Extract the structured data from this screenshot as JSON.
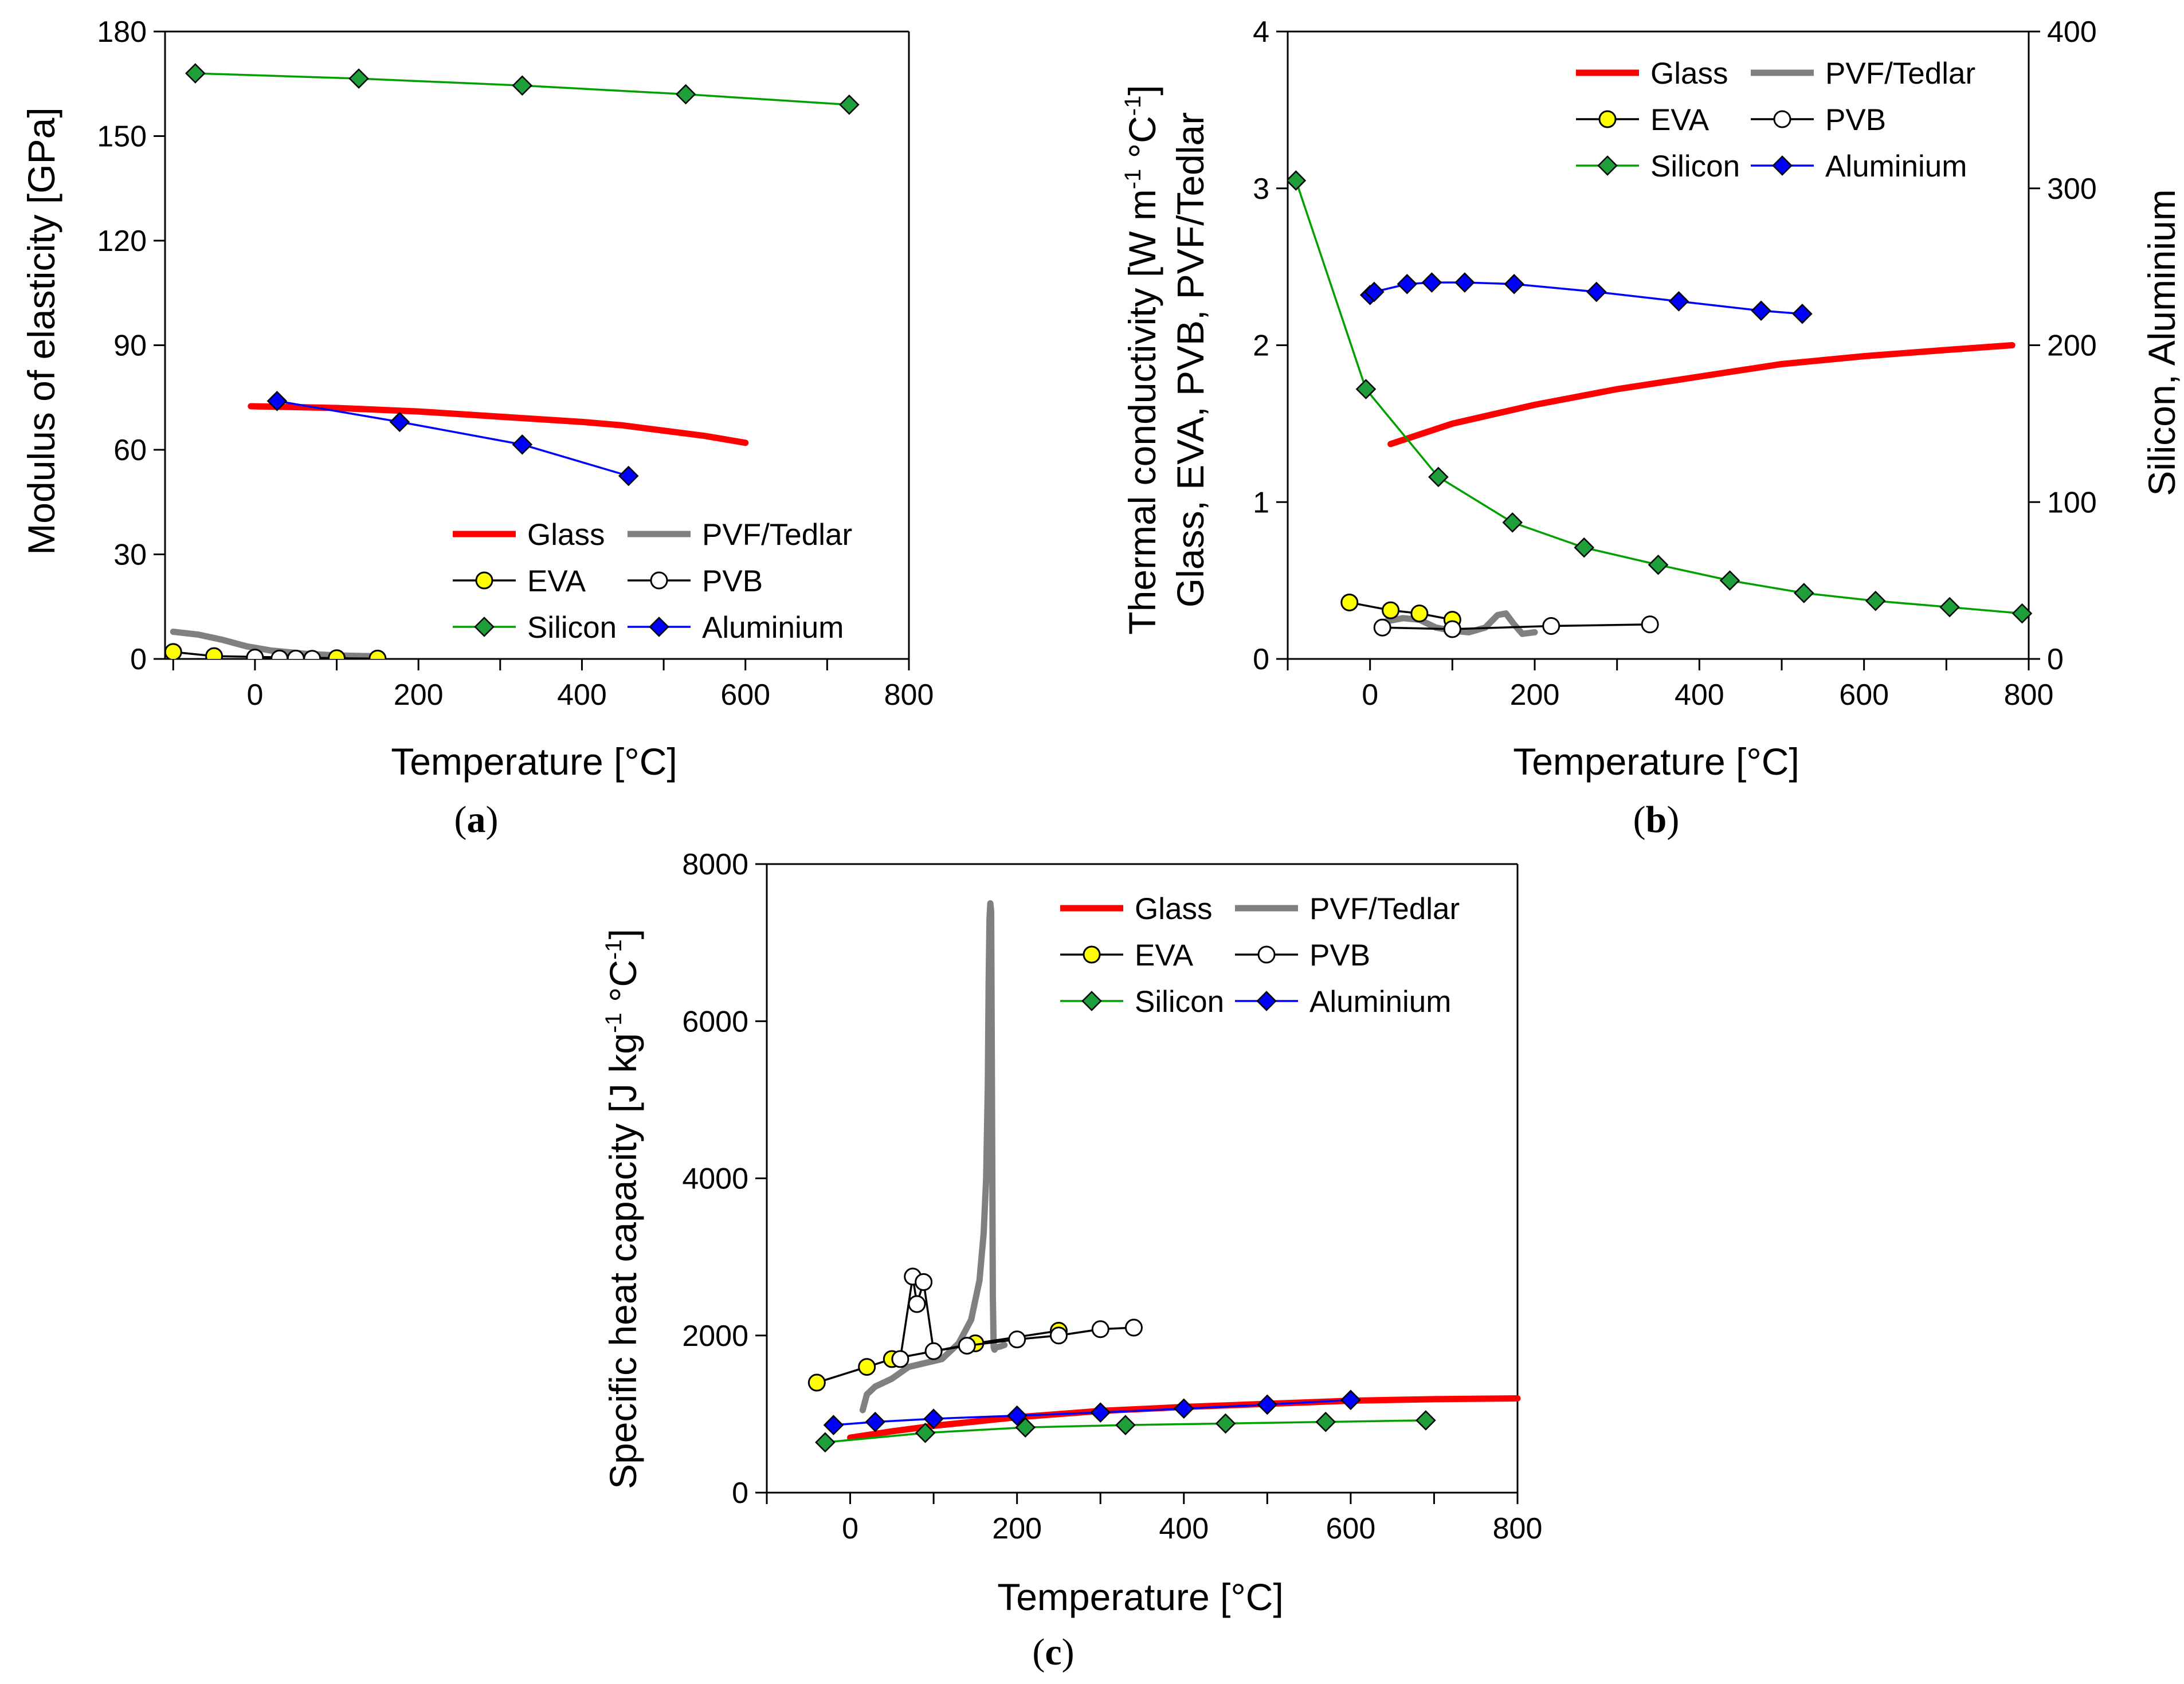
{
  "chart_data": [
    {
      "id": "a",
      "type": "line",
      "caption_open": "(",
      "caption_letter": "a",
      "caption_close": ")",
      "title": "",
      "xlabel": "Temperature  [°C]",
      "ylabel": "Modulus of elasticity  [GPa]",
      "xlim": [
        -110,
        800
      ],
      "ylim": [
        0,
        180
      ],
      "xticks": [
        0,
        200,
        400,
        600,
        800
      ],
      "yticks": [
        0,
        30,
        60,
        90,
        120,
        150,
        180
      ],
      "legend_position": "bottom-right",
      "series": [
        {
          "name": "Glass",
          "style": "thick",
          "color": "#ff0000",
          "x": [
            -5,
            100,
            200,
            300,
            400,
            450,
            500,
            550,
            600
          ],
          "y": [
            72.5,
            72,
            71,
            69.5,
            68,
            67,
            65.5,
            64,
            62
          ]
        },
        {
          "name": "PVF/Tedlar",
          "style": "thick",
          "color": "#808080",
          "x": [
            -100,
            -70,
            -40,
            -10,
            20,
            60,
            100,
            140
          ],
          "y": [
            7.8,
            7,
            5.5,
            3.6,
            2.4,
            1.5,
            1,
            0.8
          ]
        },
        {
          "name": "EVA",
          "style": "marker-circle",
          "color": "#000000",
          "fill": "#ffff00",
          "x": [
            -100,
            -50,
            100,
            150
          ],
          "y": [
            2,
            0.8,
            0.2,
            0.1
          ]
        },
        {
          "name": "PVB",
          "style": "marker-circle",
          "color": "#000000",
          "fill": "#ffffff",
          "x": [
            0,
            30,
            50,
            70
          ],
          "y": [
            0.4,
            0.1,
            0.1,
            0.05
          ]
        },
        {
          "name": "Silicon",
          "style": "marker-diamond",
          "color": "#00a000",
          "fill": "#1f9e3c",
          "x": [
            -73,
            127,
            327,
            527,
            727
          ],
          "y": [
            168,
            166.5,
            164.5,
            162,
            159
          ]
        },
        {
          "name": "Aluminium",
          "style": "marker-diamond",
          "color": "#0000ff",
          "fill": "#0000ff",
          "x": [
            27,
            177,
            327,
            457
          ],
          "y": [
            74,
            68,
            61.5,
            52.5
          ]
        }
      ]
    },
    {
      "id": "b",
      "type": "line",
      "caption_open": "(",
      "caption_letter": "b",
      "caption_close": ")",
      "title": "",
      "xlabel": "Temperature  [°C]",
      "ylabel_line1": "Thermal conductivity  [W m",
      "ylabel_line1_sup1": "-1",
      "ylabel_line1_mid": " °C",
      "ylabel_line1_sup2": "-1",
      "ylabel_line1_end": "]",
      "ylabel_line2": "Glass, EVA, PVB, PVF/Tedlar",
      "y2label": "Silicon, Aluminium",
      "xlim": [
        -100,
        800
      ],
      "ylim": [
        0,
        4
      ],
      "y2lim": [
        0,
        400
      ],
      "xticks": [
        0,
        200,
        400,
        600,
        800
      ],
      "yticks": [
        0,
        1,
        2,
        3,
        4
      ],
      "y2ticks": [
        0,
        100,
        200,
        300,
        400
      ],
      "legend_position": "top-right",
      "series": [
        {
          "name": "Glass",
          "style": "thick",
          "color": "#ff0000",
          "axis": "left",
          "x": [
            25,
            100,
            200,
            300,
            400,
            500,
            600,
            700,
            780
          ],
          "y": [
            1.37,
            1.5,
            1.62,
            1.72,
            1.8,
            1.88,
            1.93,
            1.97,
            2.0
          ]
        },
        {
          "name": "PVF/Tedlar",
          "style": "thick",
          "color": "#808080",
          "axis": "left",
          "x": [
            20,
            40,
            60,
            80,
            100,
            120,
            140,
            155,
            165,
            175,
            185,
            200
          ],
          "y": [
            0.24,
            0.26,
            0.25,
            0.2,
            0.18,
            0.17,
            0.2,
            0.28,
            0.29,
            0.22,
            0.16,
            0.17
          ]
        },
        {
          "name": "EVA",
          "style": "marker-circle",
          "color": "#000000",
          "fill": "#ffff00",
          "axis": "left",
          "x": [
            -25,
            25,
            60,
            100
          ],
          "y": [
            0.36,
            0.31,
            0.29,
            0.25
          ]
        },
        {
          "name": "PVB",
          "style": "marker-circle",
          "color": "#000000",
          "fill": "#ffffff",
          "axis": "left",
          "x": [
            15,
            100,
            220,
            340
          ],
          "y": [
            0.2,
            0.19,
            0.21,
            0.22
          ]
        },
        {
          "name": "Silicon",
          "style": "marker-diamond",
          "color": "#00a000",
          "fill": "#1f9e3c",
          "axis": "right",
          "x": [
            -90,
            -5,
            83,
            173,
            260,
            350,
            437,
            527,
            614,
            704,
            792
          ],
          "y": [
            305,
            172,
            116,
            87,
            71,
            60,
            50,
            42,
            37,
            33,
            29
          ]
        },
        {
          "name": "Aluminium",
          "style": "marker-diamond",
          "color": "#0000ff",
          "fill": "#0000ff",
          "axis": "right",
          "x": [
            0,
            5,
            45,
            75,
            115,
            175,
            275,
            375,
            475,
            525
          ],
          "y": [
            232,
            234,
            239,
            240,
            240,
            239,
            234,
            228,
            222,
            220
          ]
        }
      ]
    },
    {
      "id": "c",
      "type": "line",
      "caption_open": "(",
      "caption_letter": "c",
      "caption_close": ")",
      "title": "",
      "xlabel": "Temperature  [°C]",
      "ylabel_main": "Specific heat capacity  [J kg",
      "ylabel_sup1": "-1",
      "ylabel_mid": " °C",
      "ylabel_sup2": "-1",
      "ylabel_end": "]",
      "xlim": [
        -100,
        800
      ],
      "ylim": [
        0,
        8000
      ],
      "xticks": [
        0,
        200,
        400,
        600,
        800
      ],
      "yticks": [
        0,
        2000,
        4000,
        6000,
        8000
      ],
      "legend_position": "top-right",
      "series": [
        {
          "name": "Glass",
          "style": "thick",
          "color": "#ff0000",
          "x": [
            0,
            50,
            100,
            200,
            300,
            400,
            500,
            600,
            700,
            800
          ],
          "y": [
            700,
            780,
            850,
            960,
            1040,
            1090,
            1130,
            1170,
            1190,
            1200
          ]
        },
        {
          "name": "PVF/Tedlar",
          "style": "thick",
          "color": "#808080",
          "x": [
            15,
            20,
            30,
            50,
            70,
            90,
            110,
            130,
            145,
            155,
            160,
            163,
            165,
            166,
            167,
            168,
            169,
            170,
            171,
            172,
            173,
            175,
            180,
            185
          ],
          "y": [
            1050,
            1250,
            1350,
            1450,
            1600,
            1650,
            1700,
            1900,
            2200,
            2700,
            3300,
            4000,
            5200,
            6500,
            7300,
            7500,
            7400,
            5000,
            2500,
            1850,
            1820,
            1850,
            1860,
            1880
          ]
        },
        {
          "name": "EVA",
          "style": "marker-circle",
          "color": "#000000",
          "fill": "#ffff00",
          "x": [
            -40,
            20,
            50,
            150,
            250
          ],
          "y": [
            1400,
            1600,
            1700,
            1900,
            2060
          ]
        },
        {
          "name": "PVB",
          "style": "marker-circle",
          "color": "#000000",
          "fill": "#ffffff",
          "x": [
            60,
            75,
            80,
            88,
            100,
            140,
            200,
            250,
            300,
            340
          ],
          "y": [
            1700,
            2750,
            2400,
            2680,
            1800,
            1870,
            1950,
            2000,
            2080,
            2100
          ]
        },
        {
          "name": "Silicon",
          "style": "marker-diamond",
          "color": "#00a000",
          "fill": "#1f9e3c",
          "x": [
            -30,
            90,
            210,
            330,
            450,
            570,
            690
          ],
          "y": [
            640,
            760,
            830,
            860,
            880,
            900,
            920
          ]
        },
        {
          "name": "Aluminium",
          "style": "marker-diamond",
          "color": "#0000ff",
          "fill": "#0000ff",
          "x": [
            -20,
            30,
            100,
            200,
            300,
            400,
            500,
            600
          ],
          "y": [
            860,
            900,
            940,
            980,
            1020,
            1070,
            1120,
            1180
          ]
        }
      ]
    }
  ]
}
